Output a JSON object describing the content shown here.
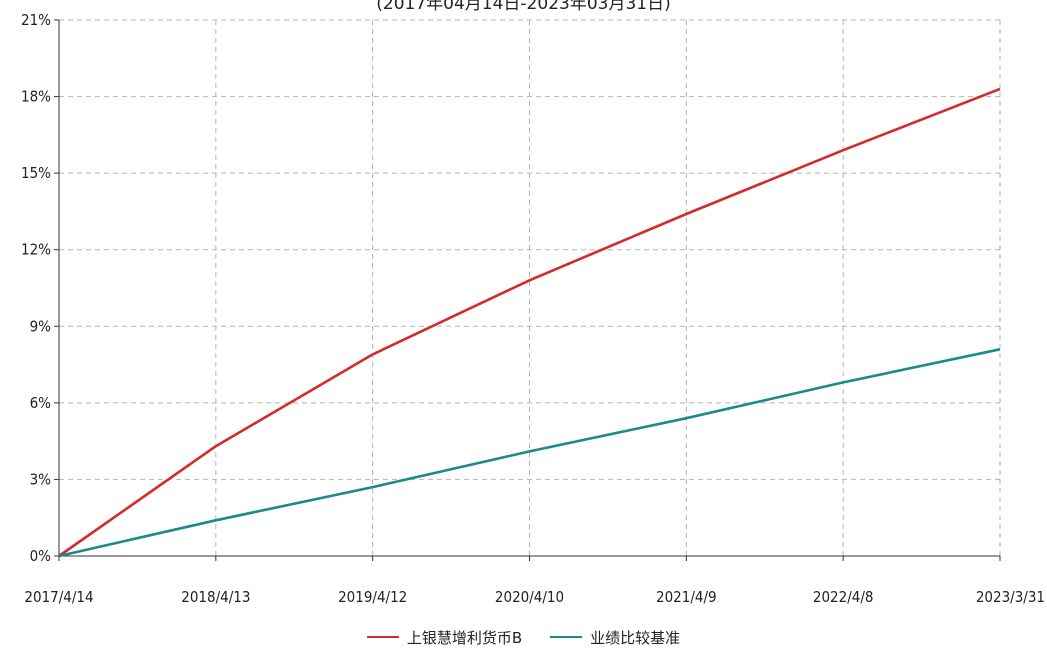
{
  "chart_data": {
    "type": "line",
    "subtitle": "(2017年04月14日-2023年03月31日)",
    "x": [
      "2017/4/14",
      "2018/4/13",
      "2019/4/12",
      "2020/4/10",
      "2021/4/9",
      "2022/4/8",
      "2023/3/31"
    ],
    "x_tick_labels": [
      "2017/4/14",
      "2018/4/13",
      "2019/4/12",
      "2020/4/10",
      "2021/4/9",
      "2022/4/8",
      "2023/3/31"
    ],
    "y_tick_labels": [
      "0%",
      "3%",
      "6%",
      "9%",
      "12%",
      "15%",
      "18%",
      "21%"
    ],
    "ylim": [
      0,
      21
    ],
    "y_unit": "%",
    "grid": true,
    "legend_position": "bottom",
    "series": [
      {
        "name": "上银慧增利货币B",
        "color": "#d42a2a",
        "values": [
          0,
          4.3,
          7.9,
          10.8,
          13.4,
          15.9,
          18.3
        ]
      },
      {
        "name": "业绩比较基准",
        "color": "#1a8a8a",
        "values": [
          0,
          1.4,
          2.7,
          4.1,
          5.4,
          6.8,
          8.1
        ]
      }
    ]
  }
}
